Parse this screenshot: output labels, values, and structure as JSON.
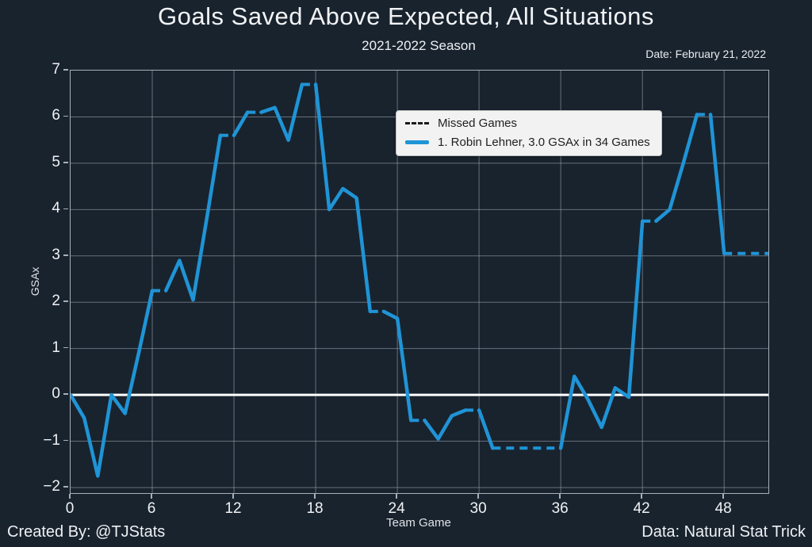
{
  "header": {
    "title": "Goals Saved Above Expected, All Situations",
    "subtitle": "2021-2022 Season",
    "date": "Date: February 21, 2022"
  },
  "footer": {
    "created_by": "Created By: @TJStats",
    "data_source": "Data: Natural Stat Trick"
  },
  "axes": {
    "x_label": "Team Game",
    "y_label": "GSAx"
  },
  "legend": {
    "items": [
      {
        "label": "Missed Games",
        "style": "dashed",
        "color": "#1a1a1a"
      },
      {
        "label": "1. Robin Lehner, 3.0 GSAx in 34 Games",
        "style": "solid",
        "color": "#1f94d6"
      }
    ]
  },
  "colors": {
    "background": "#19232e",
    "line_blue": "#1f94d6",
    "grid": "#a5aeb8",
    "zero_line": "#ffffff",
    "axis_border": "#a7b0ba",
    "legend_background": "#f2f2f2",
    "text": "#f1f3f5"
  },
  "chart_data": {
    "type": "line",
    "title": "Goals Saved Above Expected, All Situations",
    "subtitle": "2021-2022 Season",
    "xlabel": "Team Game",
    "ylabel": "GSAx",
    "xlim": [
      0,
      51.25
    ],
    "ylim": [
      -2.12,
      7
    ],
    "x_ticks": [
      0,
      6,
      12,
      18,
      24,
      30,
      36,
      42,
      48
    ],
    "y_ticks": [
      7,
      6,
      5,
      4,
      3,
      2,
      1,
      0,
      -1,
      -2
    ],
    "grid": true,
    "zero_line": true,
    "legend_position": "upper center",
    "x_description": "team game number 0-51; values[i] = cumulative GSAx after team game i; segments into missed games are dashed",
    "series": [
      {
        "name": "1. Robin Lehner, 3.0 GSAx in 34 Games",
        "color": "#1f94d6",
        "final_gsax": 3.0,
        "games_played": 34,
        "values": [
          0,
          -0.5,
          -1.75,
          0,
          -0.4,
          0.9,
          2.25,
          2.25,
          2.9,
          2.05,
          3.8,
          5.6,
          5.6,
          6.1,
          6.1,
          6.2,
          5.5,
          6.7,
          6.7,
          4.0,
          4.45,
          4.25,
          1.8,
          1.8,
          1.65,
          -0.55,
          -0.55,
          -0.95,
          -0.45,
          -0.33,
          -0.33,
          -1.15,
          -1.15,
          -1.15,
          -1.15,
          -1.15,
          -1.15,
          0.4,
          -0.1,
          -0.7,
          0.15,
          -0.05,
          3.75,
          3.75,
          4.0,
          5.0,
          6.05,
          6.05,
          3.05,
          3.05,
          3.05,
          3.05
        ],
        "missed_games": [
          7,
          12,
          14,
          18,
          23,
          26,
          30,
          32,
          33,
          34,
          35,
          36,
          43,
          47,
          49,
          50,
          51
        ]
      }
    ]
  }
}
